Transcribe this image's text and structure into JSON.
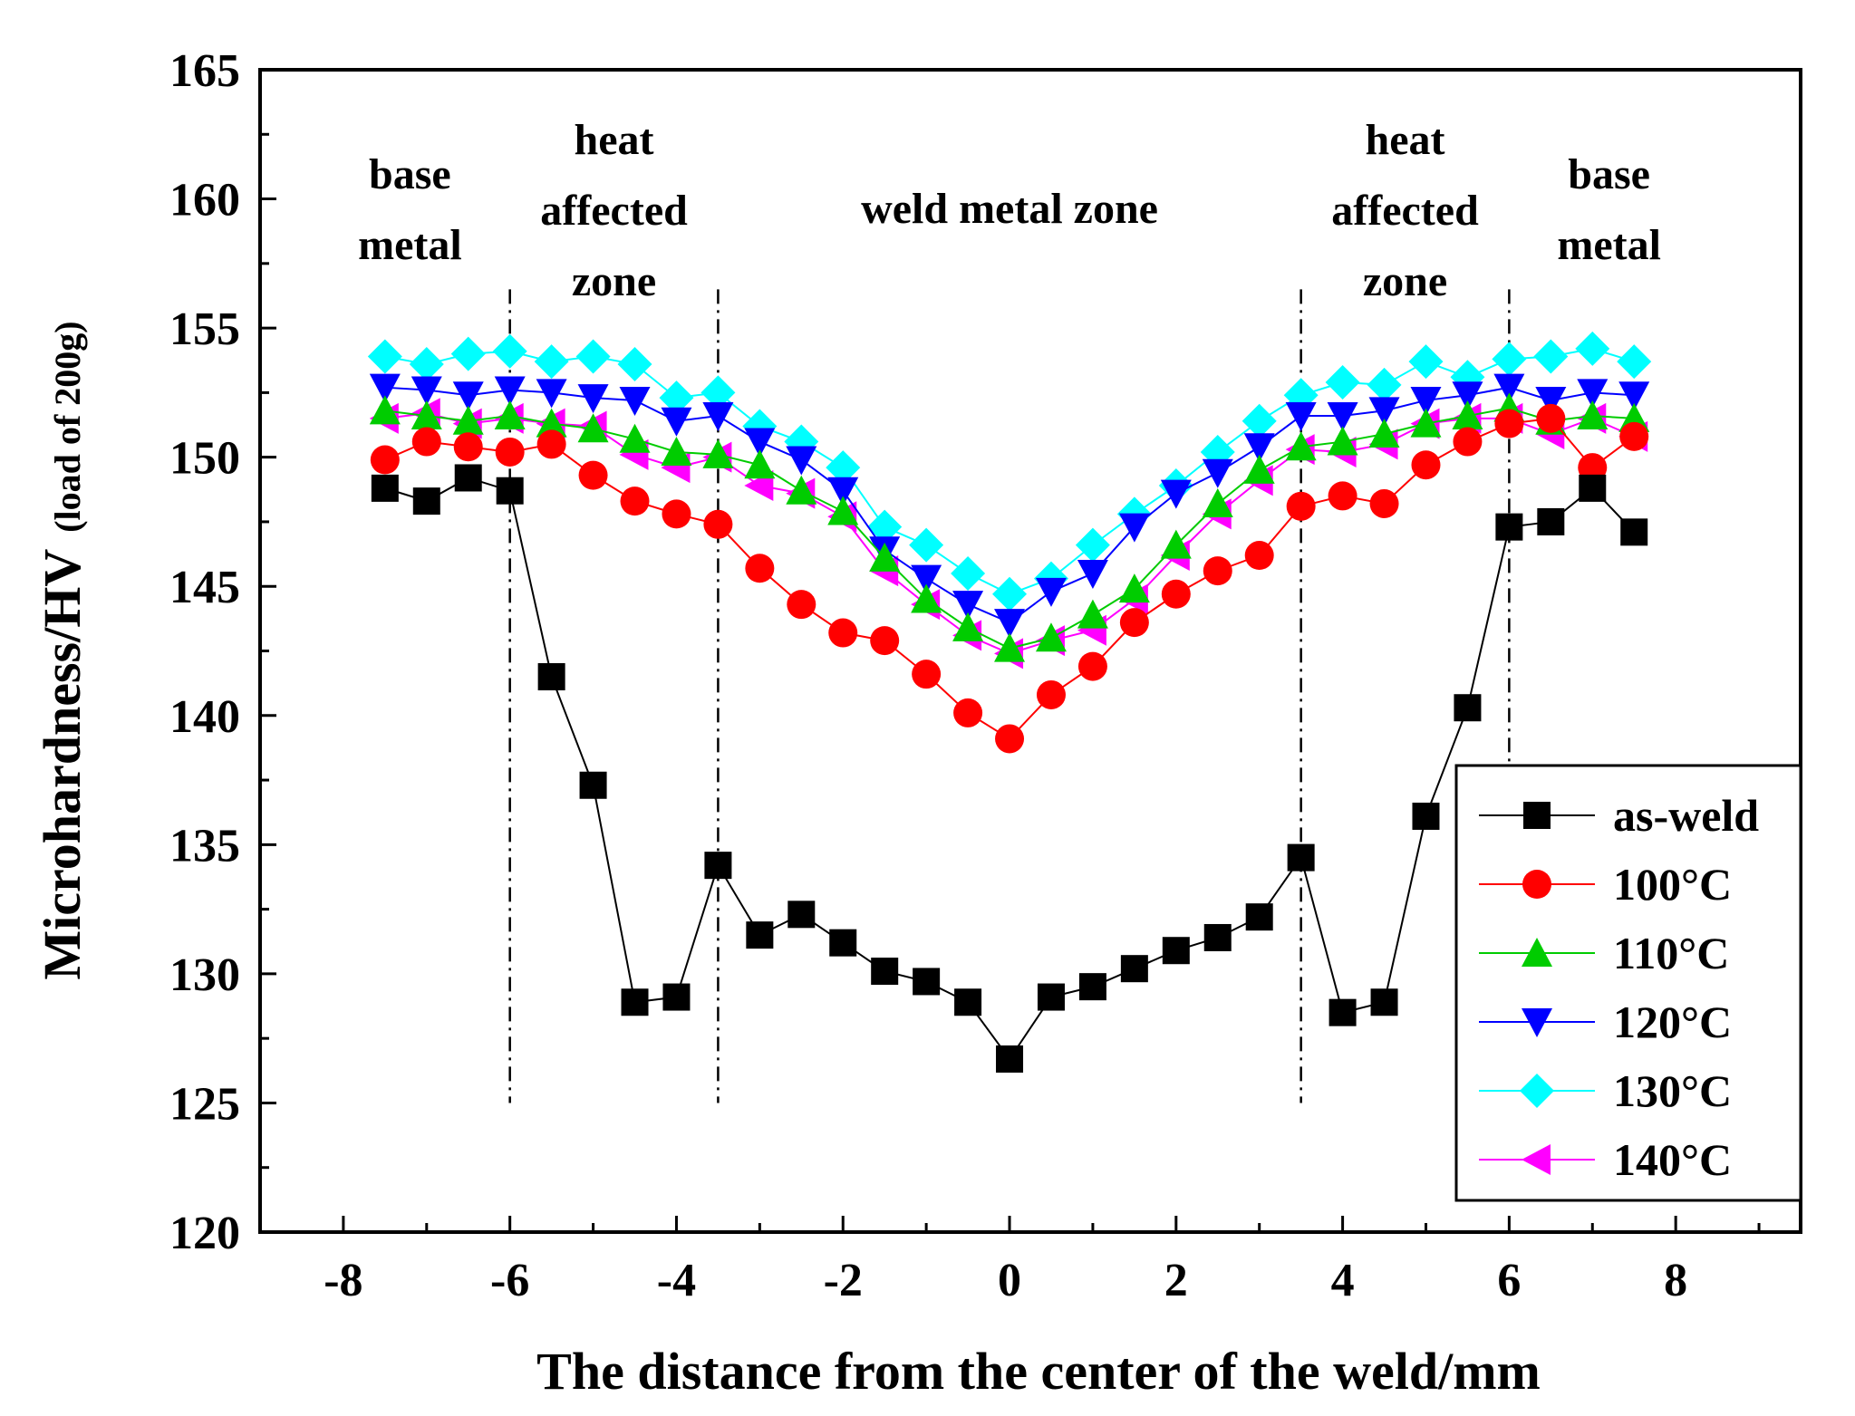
{
  "chart_data": {
    "type": "line",
    "xlabel": "The distance from the center of the weld/mm",
    "ylabel_main": "Microhardness/HV",
    "ylabel_sub": "(load of 200g)",
    "xlim": [
      -9,
      9.5
    ],
    "ylim": [
      120,
      165
    ],
    "xticks": [
      -8,
      -6,
      -4,
      -2,
      0,
      2,
      4,
      6,
      8
    ],
    "yticks": [
      120,
      125,
      130,
      135,
      140,
      145,
      150,
      155,
      160,
      165
    ],
    "boundaries": [
      -6,
      -3.5,
      3.5,
      6
    ],
    "zone_labels": [
      {
        "x": -7.2,
        "lines": [
          "base",
          "metal"
        ]
      },
      {
        "x": -4.75,
        "lines": [
          "heat",
          "affected",
          "zone"
        ]
      },
      {
        "x": 0,
        "lines": [
          "weld metal zone"
        ]
      },
      {
        "x": 4.75,
        "lines": [
          "heat",
          "affected",
          "zone"
        ]
      },
      {
        "x": 7.2,
        "lines": [
          "base",
          "metal"
        ]
      }
    ],
    "legend_position": "lower-right",
    "x": [
      -7.5,
      -7,
      -6.5,
      -6,
      -5.5,
      -5,
      -4.5,
      -4,
      -3.5,
      -3,
      -2.5,
      -2,
      -1.5,
      -1,
      -0.5,
      0,
      0.5,
      1,
      1.5,
      2,
      2.5,
      3,
      3.5,
      4,
      4.5,
      5,
      5.5,
      6,
      6.5,
      7,
      7.5
    ],
    "series": [
      {
        "name": "as-weld",
        "color": "#000000",
        "marker": "square",
        "values": [
          148.8,
          148.3,
          149.2,
          148.7,
          141.5,
          137.3,
          128.9,
          129.1,
          134.2,
          131.5,
          132.3,
          131.2,
          130.1,
          129.7,
          128.9,
          126.7,
          129.1,
          129.5,
          130.2,
          130.9,
          131.4,
          132.2,
          134.5,
          128.5,
          128.9,
          136.1,
          140.3,
          147.3,
          147.5,
          148.8,
          147.1
        ]
      },
      {
        "name": "100°C",
        "color": "#ff0000",
        "marker": "circle",
        "values": [
          149.9,
          150.6,
          150.4,
          150.2,
          150.5,
          149.3,
          148.3,
          147.8,
          147.4,
          145.7,
          144.3,
          143.2,
          142.9,
          141.6,
          140.1,
          139.1,
          140.8,
          141.9,
          143.6,
          144.7,
          145.6,
          146.2,
          148.1,
          148.5,
          148.2,
          149.7,
          150.6,
          151.3,
          151.5,
          149.6,
          150.8
        ]
      },
      {
        "name": "110°C",
        "color": "#00cc00",
        "marker": "triangle-up",
        "values": [
          151.8,
          151.6,
          151.4,
          151.6,
          151.3,
          151.1,
          150.7,
          150.2,
          150.1,
          149.7,
          148.7,
          147.9,
          146.1,
          144.5,
          143.4,
          142.6,
          143.0,
          143.9,
          144.9,
          146.6,
          148.2,
          149.5,
          150.4,
          150.6,
          150.9,
          151.3,
          151.6,
          151.9,
          151.4,
          151.6,
          151.5
        ]
      },
      {
        "name": "120°C",
        "color": "#0000ff",
        "marker": "triangle-down",
        "values": [
          152.7,
          152.6,
          152.4,
          152.6,
          152.5,
          152.3,
          152.2,
          151.4,
          151.6,
          150.6,
          149.9,
          148.7,
          146.4,
          145.3,
          144.3,
          143.6,
          144.8,
          145.5,
          147.3,
          148.6,
          149.4,
          150.4,
          151.6,
          151.6,
          151.8,
          152.2,
          152.4,
          152.7,
          152.2,
          152.5,
          152.4
        ]
      },
      {
        "name": "130°C",
        "color": "#00ffff",
        "marker": "diamond",
        "values": [
          153.9,
          153.6,
          154.0,
          154.1,
          153.7,
          153.9,
          153.6,
          152.3,
          152.5,
          151.2,
          150.6,
          149.6,
          147.3,
          146.6,
          145.5,
          144.7,
          145.3,
          146.6,
          147.8,
          148.9,
          150.2,
          151.4,
          152.4,
          152.9,
          152.8,
          153.7,
          153.1,
          153.8,
          153.9,
          154.2,
          153.7
        ]
      },
      {
        "name": "140°C",
        "color": "#ff00ff",
        "marker": "triangle-left",
        "values": [
          151.5,
          151.7,
          151.3,
          151.5,
          151.3,
          151.2,
          150.1,
          149.6,
          150.0,
          148.9,
          148.6,
          147.7,
          145.6,
          144.3,
          143.1,
          142.4,
          142.9,
          143.3,
          144.5,
          146.2,
          147.8,
          149.1,
          150.3,
          150.2,
          150.5,
          151.3,
          151.5,
          151.5,
          150.9,
          151.5,
          150.8
        ]
      }
    ]
  }
}
